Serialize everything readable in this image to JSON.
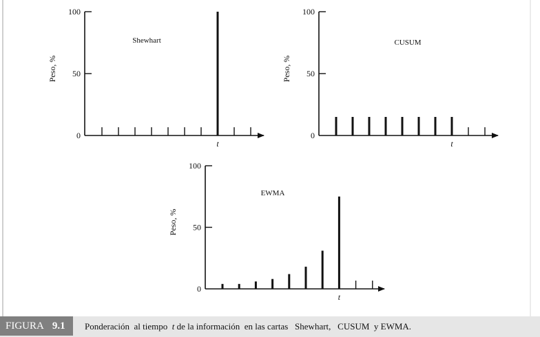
{
  "figure": {
    "label": "FIGURA",
    "number": "9.1",
    "caption_before": "Ponderación  al tiempo  ",
    "caption_t": "t",
    "caption_after": " de la información  en las cartas   Shewhart,   CUSUM  y EWMA."
  },
  "chart_data": [
    {
      "type": "bar",
      "title": "Shewhart",
      "xlabel": "t",
      "ylabel": "Peso,  %",
      "ylim": [
        0,
        100
      ],
      "yticks": [
        0,
        50,
        100
      ],
      "x": [
        1,
        2,
        3,
        4,
        5,
        6,
        7,
        8,
        9,
        10
      ],
      "values": [
        0,
        0,
        0,
        0,
        0,
        0,
        0,
        100,
        0,
        0
      ],
      "t_index": 8
    },
    {
      "type": "bar",
      "title": "CUSUM",
      "xlabel": "t",
      "ylabel": "Peso,  %",
      "ylim": [
        0,
        100
      ],
      "yticks": [
        0,
        50,
        100
      ],
      "x": [
        1,
        2,
        3,
        4,
        5,
        6,
        7,
        8,
        9,
        10
      ],
      "values": [
        15,
        15,
        15,
        15,
        15,
        15,
        15,
        15,
        0,
        0
      ],
      "t_index": 8
    },
    {
      "type": "bar",
      "title": "EWMA",
      "xlabel": "t",
      "ylabel": "Peso,  %",
      "ylim": [
        0,
        100
      ],
      "yticks": [
        0,
        50,
        100
      ],
      "x": [
        1,
        2,
        3,
        4,
        5,
        6,
        7,
        8,
        9,
        10
      ],
      "values": [
        4,
        4,
        6,
        8,
        12,
        18,
        31,
        75,
        0,
        0
      ],
      "t_index": 8
    }
  ]
}
